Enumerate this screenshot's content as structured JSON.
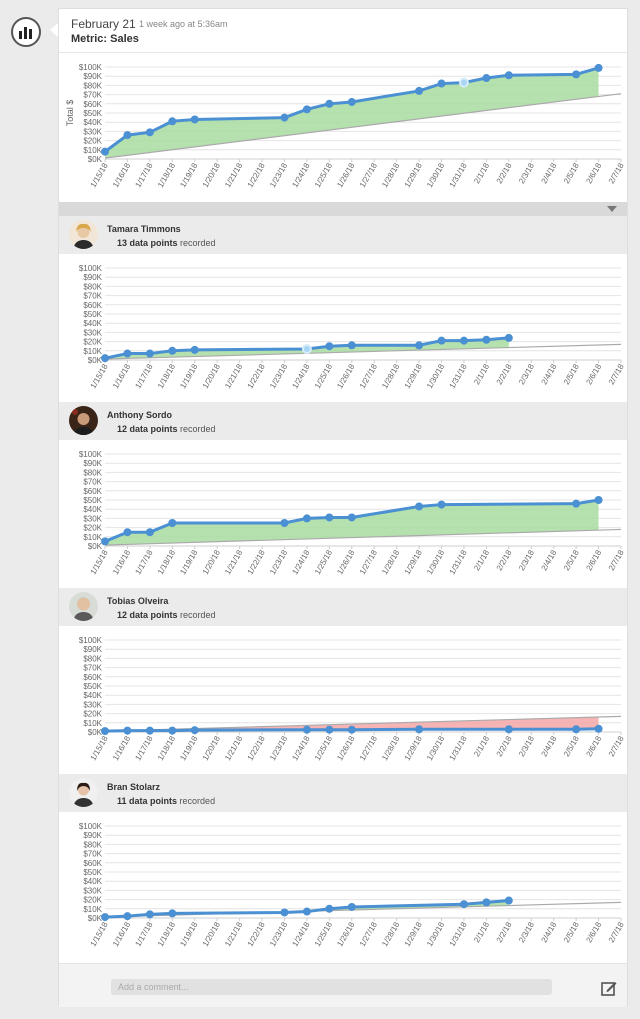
{
  "post": {
    "date": "February 21",
    "time_ago": "1 week ago at 5:36am",
    "metric": "Metric: Sales"
  },
  "comment": {
    "placeholder": "Add a comment..."
  },
  "colors": {
    "line": "#4a90d2",
    "area_up": "#a8dca0",
    "area_down": "#f4a7a7",
    "trend": "#aaaaaa",
    "highlight_point": "#a9d5f4"
  },
  "chart_data": [
    {
      "type": "line",
      "id": "total",
      "title": "",
      "ylabel": "Total $",
      "ylim": [
        0,
        100000
      ],
      "yticks": [
        "$0K",
        "$10K",
        "$20K",
        "$30K",
        "$40K",
        "$50K",
        "$60K",
        "$70K",
        "$80K",
        "$90K",
        "$100K"
      ],
      "xticks": [
        "1/15/18",
        "1/16/18",
        "1/17/18",
        "1/18/18",
        "1/19/18",
        "1/20/18",
        "1/21/18",
        "1/22/18",
        "1/23/18",
        "1/24/18",
        "1/25/18",
        "1/26/18",
        "1/27/18",
        "1/28/18",
        "1/29/18",
        "1/30/18",
        "1/31/18",
        "2/1/18",
        "2/2/18",
        "2/3/18",
        "2/4/18",
        "2/5/18",
        "2/6/18",
        "2/7/18"
      ],
      "series": [
        {
          "x": [
            "1/15/18",
            "1/16/18",
            "1/17/18",
            "1/18/18",
            "1/19/18",
            "1/23/18",
            "1/24/18",
            "1/25/18",
            "1/26/18",
            "1/29/18",
            "1/30/18",
            "1/31/18",
            "2/1/18",
            "2/2/18",
            "2/5/18",
            "2/6/18"
          ],
          "values": [
            8000,
            26000,
            29000,
            41000,
            43000,
            45000,
            54000,
            60000,
            62000,
            74000,
            82000,
            83000,
            88000,
            91000,
            92000,
            99000
          ]
        }
      ],
      "highlight": "1/31/18",
      "trend": [
        1000,
        71000
      ]
    },
    {
      "type": "line",
      "id": "tamara",
      "user": {
        "name": "Tamara Timmons",
        "count": "13 data points",
        "suffix": "recorded"
      },
      "ylim": [
        0,
        100000
      ],
      "yticks": [
        "$0K",
        "$10K",
        "$20K",
        "$30K",
        "$40K",
        "$50K",
        "$60K",
        "$70K",
        "$80K",
        "$90K",
        "$100K"
      ],
      "xticks": [
        "1/15/18",
        "1/16/18",
        "1/17/18",
        "1/18/18",
        "1/19/18",
        "1/20/18",
        "1/21/18",
        "1/22/18",
        "1/23/18",
        "1/24/18",
        "1/25/18",
        "1/26/18",
        "1/27/18",
        "1/28/18",
        "1/29/18",
        "1/30/18",
        "1/31/18",
        "2/1/18",
        "2/2/18",
        "2/3/18",
        "2/4/18",
        "2/5/18",
        "2/6/18",
        "2/7/18"
      ],
      "series": [
        {
          "x": [
            "1/15/18",
            "1/16/18",
            "1/17/18",
            "1/18/18",
            "1/19/18",
            "1/24/18",
            "1/25/18",
            "1/26/18",
            "1/29/18",
            "1/30/18",
            "1/31/18",
            "2/1/18",
            "2/2/18"
          ],
          "values": [
            2000,
            7000,
            7000,
            10000,
            11000,
            12000,
            15000,
            16000,
            16000,
            21000,
            21000,
            22000,
            24000
          ]
        }
      ],
      "highlight": "1/24/18",
      "trend": [
        1000,
        17000
      ]
    },
    {
      "type": "line",
      "id": "anthony",
      "user": {
        "name": "Anthony Sordo",
        "count": "12 data points",
        "suffix": "recorded"
      },
      "ylim": [
        0,
        100000
      ],
      "yticks": [
        "$0K",
        "$10K",
        "$20K",
        "$30K",
        "$40K",
        "$50K",
        "$60K",
        "$70K",
        "$80K",
        "$90K",
        "$100K"
      ],
      "xticks": [
        "1/15/18",
        "1/16/18",
        "1/17/18",
        "1/18/18",
        "1/19/18",
        "1/20/18",
        "1/21/18",
        "1/22/18",
        "1/23/18",
        "1/24/18",
        "1/25/18",
        "1/26/18",
        "1/27/18",
        "1/28/18",
        "1/29/18",
        "1/30/18",
        "1/31/18",
        "2/1/18",
        "2/2/18",
        "2/3/18",
        "2/4/18",
        "2/5/18",
        "2/6/18",
        "2/7/18"
      ],
      "series": [
        {
          "x": [
            "1/15/18",
            "1/16/18",
            "1/17/18",
            "1/18/18",
            "1/23/18",
            "1/24/18",
            "1/25/18",
            "1/26/18",
            "1/29/18",
            "1/30/18",
            "2/5/18",
            "2/6/18"
          ],
          "values": [
            5000,
            15000,
            15000,
            25000,
            25000,
            30000,
            31000,
            31000,
            43000,
            45000,
            46000,
            50000
          ]
        }
      ],
      "highlight": null,
      "trend": [
        1000,
        18000
      ]
    },
    {
      "type": "line",
      "id": "tobias",
      "user": {
        "name": "Tobias Olveira",
        "count": "12 data points",
        "suffix": "recorded"
      },
      "ylim": [
        0,
        100000
      ],
      "yticks": [
        "$0K",
        "$10K",
        "$20K",
        "$30K",
        "$40K",
        "$50K",
        "$60K",
        "$70K",
        "$80K",
        "$90K",
        "$100K"
      ],
      "xticks": [
        "1/15/18",
        "1/16/18",
        "1/17/18",
        "1/18/18",
        "1/19/18",
        "1/20/18",
        "1/21/18",
        "1/22/18",
        "1/23/18",
        "1/24/18",
        "1/25/18",
        "1/26/18",
        "1/27/18",
        "1/28/18",
        "1/29/18",
        "1/30/18",
        "1/31/18",
        "2/1/18",
        "2/2/18",
        "2/3/18",
        "2/4/18",
        "2/5/18",
        "2/6/18",
        "2/7/18"
      ],
      "series": [
        {
          "x": [
            "1/15/18",
            "1/16/18",
            "1/17/18",
            "1/18/18",
            "1/19/18",
            "1/24/18",
            "1/25/18",
            "1/26/18",
            "1/29/18",
            "2/2/18",
            "2/5/18",
            "2/6/18"
          ],
          "values": [
            1000,
            1500,
            1500,
            1500,
            2000,
            2500,
            2500,
            2500,
            3000,
            3000,
            3000,
            3500
          ]
        }
      ],
      "highlight": null,
      "trend": [
        1000,
        17000
      ]
    },
    {
      "type": "line",
      "id": "bran",
      "user": {
        "name": "Bran Stolarz",
        "count": "11 data points",
        "suffix": "recorded"
      },
      "ylim": [
        0,
        100000
      ],
      "yticks": [
        "$0K",
        "$10K",
        "$20K",
        "$30K",
        "$40K",
        "$50K",
        "$60K",
        "$70K",
        "$80K",
        "$90K",
        "$100K"
      ],
      "xticks": [
        "1/15/18",
        "1/16/18",
        "1/17/18",
        "1/18/18",
        "1/19/18",
        "1/20/18",
        "1/21/18",
        "1/22/18",
        "1/23/18",
        "1/24/18",
        "1/25/18",
        "1/26/18",
        "1/27/18",
        "1/28/18",
        "1/29/18",
        "1/30/18",
        "1/31/18",
        "2/1/18",
        "2/2/18",
        "2/3/18",
        "2/4/18",
        "2/5/18",
        "2/6/18",
        "2/7/18"
      ],
      "series": [
        {
          "x": [
            "1/15/18",
            "1/16/18",
            "1/17/18",
            "1/18/18",
            "1/23/18",
            "1/24/18",
            "1/25/18",
            "1/26/18",
            "1/31/18",
            "2/1/18",
            "2/2/18"
          ],
          "values": [
            1000,
            2000,
            4000,
            5000,
            6000,
            7000,
            10000,
            12000,
            15000,
            17000,
            19000
          ]
        }
      ],
      "highlight": null,
      "trend": [
        1000,
        17000
      ]
    }
  ]
}
